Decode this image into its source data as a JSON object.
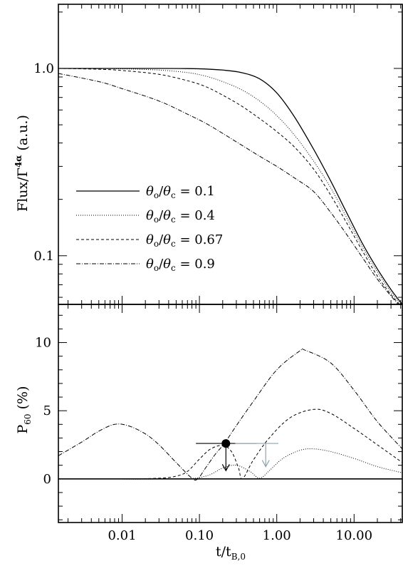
{
  "chart_data": [
    {
      "type": "line",
      "panel": "top",
      "ylabel_text": "Flux/Γ",
      "ylabel_sup": "4α",
      "ylabel_unit": " (a.u.)",
      "xscale": "log",
      "yscale": "log",
      "xlim": [
        0.0015,
        42
      ],
      "ylim": [
        0.055,
        2.2
      ],
      "ytick_values": [
        0.1,
        1.0
      ],
      "ytick_labels": [
        "0.1",
        "1.0"
      ],
      "legend_position": "center-left",
      "series": [
        {
          "name": "θo/θc = 0.1",
          "legend_value": "0.1",
          "style": "solid",
          "x": [
            0.0015,
            0.01,
            0.03,
            0.07,
            0.12,
            0.2,
            0.35,
            0.6,
            1.0,
            1.7,
            3,
            5,
            8,
            13,
            20,
            30,
            42
          ],
          "y": [
            1.0,
            1.0,
            1.0,
            0.998,
            0.993,
            0.98,
            0.95,
            0.88,
            0.74,
            0.55,
            0.37,
            0.25,
            0.17,
            0.115,
            0.085,
            0.066,
            0.055
          ]
        },
        {
          "name": "θo/θc = 0.4",
          "legend_value": "0.4",
          "style": "dotted",
          "x": [
            0.0015,
            0.005,
            0.01,
            0.03,
            0.07,
            0.12,
            0.2,
            0.35,
            0.6,
            1.0,
            1.7,
            3,
            5,
            8,
            13,
            20,
            30,
            42
          ],
          "y": [
            1.0,
            0.998,
            0.995,
            0.98,
            0.95,
            0.91,
            0.85,
            0.77,
            0.67,
            0.56,
            0.44,
            0.32,
            0.23,
            0.16,
            0.11,
            0.082,
            0.064,
            0.054
          ]
        },
        {
          "name": "θo/θc = 0.67",
          "legend_value": "0.67",
          "style": "dashed",
          "x": [
            0.0015,
            0.005,
            0.01,
            0.03,
            0.07,
            0.12,
            0.2,
            0.35,
            0.6,
            1.0,
            1.7,
            3,
            5,
            8,
            13,
            20,
            30,
            42
          ],
          "y": [
            1.0,
            0.99,
            0.975,
            0.93,
            0.86,
            0.8,
            0.72,
            0.63,
            0.54,
            0.46,
            0.38,
            0.29,
            0.21,
            0.15,
            0.105,
            0.078,
            0.062,
            0.053
          ]
        },
        {
          "name": "θo/θc = 0.9",
          "legend_value": "0.9",
          "style": "dashdot",
          "x": [
            0.0015,
            0.005,
            0.01,
            0.03,
            0.07,
            0.12,
            0.2,
            0.35,
            0.6,
            1.0,
            1.7,
            3,
            5,
            8,
            13,
            20,
            30,
            42
          ],
          "y": [
            0.94,
            0.85,
            0.78,
            0.67,
            0.57,
            0.51,
            0.45,
            0.39,
            0.34,
            0.3,
            0.26,
            0.22,
            0.17,
            0.13,
            0.097,
            0.075,
            0.061,
            0.052
          ]
        }
      ]
    },
    {
      "type": "line",
      "panel": "bottom",
      "ylabel_main": "P",
      "ylabel_sub": "60",
      "ylabel_unit": " (%)",
      "xlabel_main": "t/t",
      "xlabel_sub": "B,0",
      "xscale": "log",
      "xlim": [
        0.0015,
        42
      ],
      "ylim": [
        -3.2,
        12.8
      ],
      "ytick_values": [
        0,
        5,
        10
      ],
      "ytick_labels": [
        "0",
        "5",
        "10"
      ],
      "xtick_values": [
        0.01,
        0.1,
        1.0,
        10.0
      ],
      "xtick_labels": [
        "0.01",
        "0.10",
        "1.00",
        "10.00"
      ],
      "series": [
        {
          "name": "0.1",
          "style": "solid",
          "x": [
            0.0015,
            42
          ],
          "y": [
            0.0,
            0.0
          ]
        },
        {
          "name": "0.4",
          "style": "dotted",
          "x": [
            0.0015,
            0.05,
            0.12,
            0.2,
            0.3,
            0.45,
            0.6,
            0.8,
            1.2,
            2.0,
            3.0,
            5.0,
            10,
            20,
            42
          ],
          "y": [
            0.0,
            0.0,
            0.2,
            0.8,
            1.0,
            0.55,
            0.05,
            0.6,
            1.5,
            2.1,
            2.2,
            2.0,
            1.5,
            0.9,
            0.45
          ]
        },
        {
          "name": "0.67",
          "style": "dashed",
          "x": [
            0.0015,
            0.01,
            0.03,
            0.05,
            0.07,
            0.1,
            0.14,
            0.2,
            0.26,
            0.32,
            0.36,
            0.5,
            0.8,
            1.5,
            3.0,
            5.0,
            10,
            20,
            42
          ],
          "y": [
            0.0,
            0.0,
            0.05,
            0.2,
            0.55,
            1.45,
            2.2,
            2.45,
            2.0,
            0.8,
            0.0,
            1.4,
            3.0,
            4.5,
            5.1,
            4.8,
            3.7,
            2.5,
            1.2
          ]
        },
        {
          "name": "0.9",
          "style": "dashdot",
          "x": [
            0.0015,
            0.003,
            0.005,
            0.008,
            0.012,
            0.02,
            0.03,
            0.05,
            0.08,
            0.095,
            0.12,
            0.16,
            0.21,
            0.3,
            0.5,
            1.0,
            2.0,
            2.3,
            5.0,
            10,
            20,
            42
          ],
          "y": [
            1.7,
            2.7,
            3.5,
            4.0,
            3.9,
            3.3,
            2.5,
            1.2,
            0.05,
            0.0,
            0.8,
            1.8,
            2.6,
            3.9,
            5.7,
            8.0,
            9.4,
            9.45,
            8.5,
            6.5,
            4.2,
            2.2
          ]
        }
      ],
      "annotations": [
        {
          "kind": "upper_limit_point",
          "color": "#000000",
          "x": 0.22,
          "y": 2.6,
          "xerr": [
            0.09,
            0.55
          ],
          "arrow_to": 0.6
        },
        {
          "kind": "upper_limit",
          "color": "#8fa4b0",
          "x": 0.72,
          "y": 2.6,
          "xerr": [
            0.29,
            1.05
          ],
          "arrow_to": 0.9
        }
      ]
    }
  ]
}
